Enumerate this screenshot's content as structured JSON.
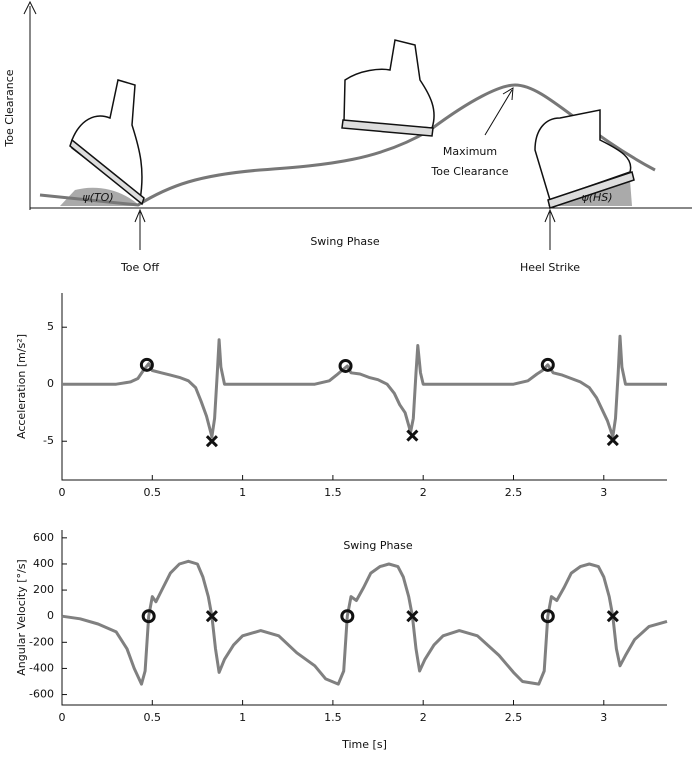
{
  "diagram": {
    "y_label": "Toe Clearance",
    "x_label": "Swing Phase",
    "toe_off": "Toe Off",
    "heel_strike": "Heel Strike",
    "max_clearance": [
      "Maximum",
      "Toe Clearance"
    ],
    "angle_to": "ψ(TO)",
    "angle_hs": "ψ(HS)"
  },
  "chart_data": [
    {
      "type": "line",
      "ylabel": "Acceleration [m/s²]",
      "color": "#808080",
      "xlim": [
        0,
        3.35
      ],
      "ylim": [
        -8.4,
        8
      ],
      "xticks": [
        0,
        0.5,
        1,
        1.5,
        2,
        2.5,
        3
      ],
      "yticks": [
        -5,
        0,
        5
      ],
      "x": [
        0,
        0.1,
        0.2,
        0.3,
        0.38,
        0.42,
        0.45,
        0.48,
        0.5,
        0.55,
        0.6,
        0.65,
        0.7,
        0.74,
        0.77,
        0.8,
        0.83,
        0.845,
        0.86,
        0.87,
        0.88,
        0.9,
        1.0,
        1.1,
        1.2,
        1.3,
        1.4,
        1.48,
        1.52,
        1.55,
        1.58,
        1.6,
        1.65,
        1.7,
        1.75,
        1.8,
        1.84,
        1.87,
        1.9,
        1.93,
        1.945,
        1.96,
        1.97,
        1.985,
        2.0,
        2.1,
        2.2,
        2.3,
        2.4,
        2.5,
        2.58,
        2.63,
        2.66,
        2.69,
        2.72,
        2.77,
        2.82,
        2.87,
        2.92,
        2.96,
        2.99,
        3.02,
        3.05,
        3.065,
        3.08,
        3.09,
        3.1,
        3.12,
        3.2,
        3.35
      ],
      "values": [
        0,
        0,
        0,
        0,
        0.2,
        0.5,
        1.2,
        1.8,
        1.2,
        1.0,
        0.8,
        0.6,
        0.3,
        -0.3,
        -1.5,
        -2.8,
        -4.6,
        -3,
        1,
        3.9,
        1.5,
        0,
        0,
        0,
        0,
        0,
        0,
        0.3,
        0.8,
        1.2,
        1.6,
        1.0,
        0.9,
        0.6,
        0.4,
        0,
        -0.8,
        -1.8,
        -2.5,
        -4.2,
        -3,
        1,
        3.4,
        1,
        0,
        0,
        0,
        0,
        0,
        0,
        0.3,
        0.9,
        1.2,
        1.7,
        1.0,
        0.8,
        0.5,
        0.2,
        -0.3,
        -1.2,
        -2.2,
        -3.2,
        -4.6,
        -3,
        1,
        4.2,
        1.5,
        0,
        0,
        0
      ],
      "circles": {
        "x": [
          0.47,
          1.57,
          2.69
        ],
        "values": [
          1.7,
          1.6,
          1.7
        ]
      },
      "crosses": {
        "x": [
          0.83,
          1.94,
          3.05
        ],
        "values": [
          -5.0,
          -4.5,
          -4.9
        ]
      }
    },
    {
      "type": "line",
      "ylabel": "Angular Velocity [°/s]",
      "xlabel": "Time [s]",
      "annotation": "Swing Phase",
      "color": "#808080",
      "xlim": [
        0,
        3.35
      ],
      "ylim": [
        -680,
        660
      ],
      "xticks": [
        0,
        0.5,
        1,
        1.5,
        2,
        2.5,
        3
      ],
      "yticks": [
        -600,
        -400,
        -200,
        0,
        200,
        400,
        600
      ],
      "x": [
        0,
        0.1,
        0.2,
        0.3,
        0.36,
        0.4,
        0.44,
        0.46,
        0.48,
        0.5,
        0.52,
        0.56,
        0.6,
        0.65,
        0.7,
        0.75,
        0.78,
        0.81,
        0.83,
        0.85,
        0.87,
        0.9,
        0.95,
        1.0,
        1.1,
        1.2,
        1.3,
        1.4,
        1.46,
        1.53,
        1.56,
        1.58,
        1.6,
        1.63,
        1.67,
        1.71,
        1.76,
        1.81,
        1.86,
        1.89,
        1.92,
        1.94,
        1.96,
        1.98,
        2.01,
        2.06,
        2.11,
        2.2,
        2.3,
        2.42,
        2.5,
        2.55,
        2.64,
        2.67,
        2.69,
        2.71,
        2.74,
        2.78,
        2.82,
        2.87,
        2.92,
        2.97,
        3.0,
        3.03,
        3.05,
        3.07,
        3.09,
        3.12,
        3.17,
        3.25,
        3.35
      ],
      "values": [
        0,
        -20,
        -60,
        -120,
        -250,
        -400,
        -520,
        -420,
        0,
        150,
        110,
        220,
        330,
        400,
        420,
        400,
        300,
        150,
        0,
        -250,
        -430,
        -330,
        -220,
        -150,
        -110,
        -150,
        -280,
        -380,
        -480,
        -520,
        -420,
        0,
        150,
        120,
        220,
        330,
        380,
        400,
        380,
        300,
        150,
        0,
        -250,
        -420,
        -330,
        -220,
        -150,
        -110,
        -150,
        -300,
        -430,
        -500,
        -520,
        -420,
        0,
        150,
        120,
        220,
        330,
        380,
        400,
        380,
        300,
        150,
        0,
        -250,
        -380,
        -300,
        -180,
        -80,
        -40
      ],
      "circles": {
        "x": [
          0.48,
          1.58,
          2.69
        ],
        "values": [
          0,
          0,
          0
        ]
      },
      "crosses": {
        "x": [
          0.83,
          1.94,
          3.05
        ],
        "values": [
          0,
          0,
          0
        ]
      }
    }
  ]
}
